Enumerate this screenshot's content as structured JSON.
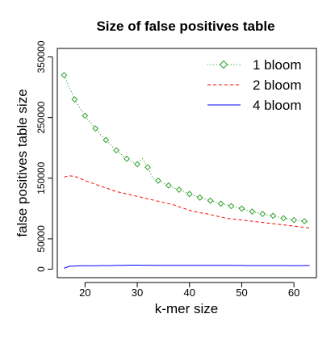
{
  "chart_data": {
    "type": "line",
    "title": "Size of false positives table",
    "xlabel": "k-mer size",
    "ylabel": "false positives table size",
    "xlim": [
      14.7,
      64.3
    ],
    "ylim": [
      -14000,
      364000
    ],
    "x_ticks": [
      20,
      30,
      40,
      50,
      60
    ],
    "y_ticks": [
      0,
      50000,
      150000,
      250000,
      350000
    ],
    "legend_position": "top-right",
    "grid": false,
    "x": [
      16,
      17,
      18,
      19,
      20,
      21,
      22,
      23,
      24,
      25,
      26,
      27,
      28,
      29,
      30,
      31,
      32,
      33,
      34,
      35,
      36,
      37,
      38,
      39,
      40,
      41,
      42,
      43,
      44,
      45,
      46,
      47,
      48,
      49,
      50,
      51,
      52,
      53,
      54,
      55,
      56,
      57,
      58,
      59,
      60,
      61,
      62,
      63
    ],
    "series": [
      {
        "name": "1 bloom",
        "color": "#2ca02c",
        "line_style": "dotted",
        "marker": "diamond",
        "values": [
          320000,
          300000,
          280000,
          266000,
          253000,
          242000,
          232000,
          222000,
          213000,
          204000,
          196000,
          189000,
          182000,
          177000,
          173000,
          182000,
          168000,
          150000,
          146000,
          142000,
          138000,
          134000,
          131000,
          128000,
          124000,
          121000,
          118000,
          116000,
          113000,
          111000,
          108000,
          106000,
          104000,
          102000,
          100000,
          97000,
          95000,
          93000,
          91000,
          89000,
          88000,
          86000,
          84000,
          83000,
          81000,
          80000,
          79000,
          78000
        ]
      },
      {
        "name": "2 bloom",
        "color": "#ff0000",
        "line_style": "dashed",
        "marker": "none",
        "values": [
          152000,
          154000,
          153000,
          150000,
          146000,
          143000,
          140000,
          137000,
          134000,
          131000,
          128000,
          126000,
          124000,
          122000,
          120000,
          118000,
          116000,
          114000,
          112000,
          110000,
          108000,
          106000,
          103000,
          100000,
          97000,
          95000,
          93000,
          92000,
          90000,
          88000,
          86000,
          84000,
          83000,
          82000,
          81000,
          80000,
          79000,
          78000,
          77000,
          76000,
          75000,
          74000,
          73000,
          72000,
          71000,
          70000,
          69000,
          68000
        ]
      },
      {
        "name": "4 bloom",
        "color": "#0000ff",
        "line_style": "solid",
        "marker": "none",
        "values": [
          1500,
          4800,
          5200,
          5500,
          5600,
          5500,
          5700,
          5900,
          5800,
          6000,
          6200,
          6300,
          6500,
          6600,
          6600,
          6500,
          6500,
          6400,
          6300,
          6200,
          6300,
          6400,
          6300,
          6200,
          6300,
          6400,
          6300,
          6200,
          6200,
          6300,
          6300,
          6300,
          6200,
          6100,
          6100,
          6000,
          6000,
          6000,
          5900,
          5900,
          5900,
          5900,
          5900,
          5800,
          5800,
          5800,
          5900,
          6000
        ]
      }
    ]
  }
}
